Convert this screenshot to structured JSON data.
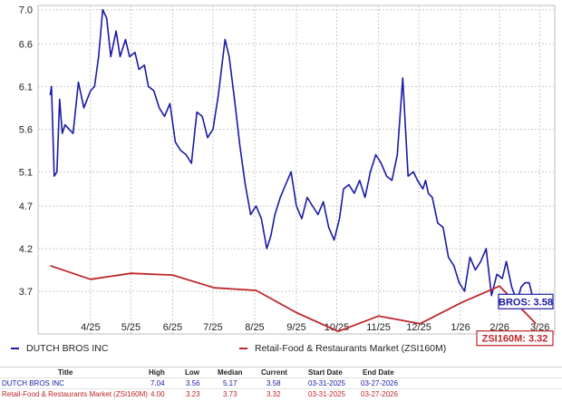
{
  "chart_data": {
    "type": "line",
    "title": "",
    "xlabel": "",
    "ylabel": "",
    "ylim": [
      3.2,
      7.05
    ],
    "y_ticks": [
      3.7,
      4.2,
      4.7,
      5.1,
      5.6,
      6.1,
      6.6,
      7.0
    ],
    "y_tick_labels": [
      "3.7",
      "4.2",
      "4.7",
      "5.1",
      "5.6",
      "6.1",
      "6.6",
      "7.0"
    ],
    "x_ticks": [
      "2025-04-30",
      "2025-05-30",
      "2025-06-30",
      "2025-07-30",
      "2025-08-30",
      "2025-09-30",
      "2025-10-30",
      "2025-11-30",
      "2025-12-30",
      "2026-01-30",
      "2026-02-28",
      "2026-03-30"
    ],
    "x_tick_labels": [
      "4/25",
      "5/25",
      "6/25",
      "7/25",
      "8/25",
      "9/25",
      "10/25",
      "11/25",
      "12/25",
      "1/26",
      "2/26",
      "3/26"
    ],
    "xlim": [
      "2025-03-22",
      "2026-04-10"
    ],
    "grid": true,
    "legend_placement": "bottom",
    "series": [
      {
        "name": "DUTCH BROS INC",
        "color": "#1a1aa6",
        "label": "BROS: 3.58",
        "x": [
          "2025-03-31",
          "2025-04-01",
          "2025-04-03",
          "2025-04-05",
          "2025-04-07",
          "2025-04-09",
          "2025-04-11",
          "2025-04-14",
          "2025-04-17",
          "2025-04-21",
          "2025-04-25",
          "2025-04-30",
          "2025-05-03",
          "2025-05-06",
          "2025-05-09",
          "2025-05-12",
          "2025-05-15",
          "2025-05-19",
          "2025-05-22",
          "2025-05-26",
          "2025-05-29",
          "2025-06-02",
          "2025-06-05",
          "2025-06-09",
          "2025-06-12",
          "2025-06-16",
          "2025-06-20",
          "2025-06-24",
          "2025-06-28",
          "2025-07-02",
          "2025-07-06",
          "2025-07-10",
          "2025-07-14",
          "2025-07-18",
          "2025-07-22",
          "2025-07-26",
          "2025-07-30",
          "2025-08-03",
          "2025-08-06",
          "2025-08-08",
          "2025-08-11",
          "2025-08-15",
          "2025-08-19",
          "2025-08-23",
          "2025-08-27",
          "2025-08-31",
          "2025-09-04",
          "2025-09-08",
          "2025-09-11",
          "2025-09-14",
          "2025-09-18",
          "2025-09-22",
          "2025-09-26",
          "2025-09-30",
          "2025-10-04",
          "2025-10-08",
          "2025-10-12",
          "2025-10-16",
          "2025-10-20",
          "2025-10-24",
          "2025-10-28",
          "2025-11-01",
          "2025-11-04",
          "2025-11-08",
          "2025-11-12",
          "2025-11-16",
          "2025-11-20",
          "2025-11-24",
          "2025-11-28",
          "2025-12-02",
          "2025-12-06",
          "2025-12-10",
          "2025-12-14",
          "2025-12-18",
          "2025-12-22",
          "2025-12-26",
          "2025-12-29",
          "2026-01-02",
          "2026-01-04",
          "2026-01-06",
          "2026-01-09",
          "2026-01-13",
          "2026-01-17",
          "2026-01-21",
          "2026-01-25",
          "2026-01-29",
          "2026-02-02",
          "2026-02-06",
          "2026-02-10",
          "2026-02-14",
          "2026-02-18",
          "2026-02-22",
          "2026-02-26",
          "2026-03-02",
          "2026-03-05",
          "2026-03-09",
          "2026-03-13",
          "2026-03-16",
          "2026-03-19",
          "2026-03-22",
          "2026-03-25",
          "2026-03-27"
        ],
        "values": [
          6.0,
          6.1,
          5.05,
          5.1,
          5.95,
          5.55,
          5.65,
          5.6,
          5.55,
          6.15,
          5.85,
          6.05,
          6.1,
          6.45,
          7.0,
          6.9,
          6.45,
          6.75,
          6.45,
          6.65,
          6.45,
          6.5,
          6.3,
          6.35,
          6.1,
          6.05,
          5.85,
          5.75,
          5.9,
          5.45,
          5.35,
          5.3,
          5.2,
          5.8,
          5.75,
          5.5,
          5.6,
          6.0,
          6.4,
          6.65,
          6.45,
          5.95,
          5.4,
          4.95,
          4.6,
          4.7,
          4.55,
          4.2,
          4.35,
          4.6,
          4.8,
          4.95,
          5.1,
          4.7,
          4.55,
          4.8,
          4.7,
          4.6,
          4.75,
          4.45,
          4.3,
          4.55,
          4.9,
          4.95,
          4.85,
          5.0,
          4.8,
          5.1,
          5.3,
          5.2,
          5.05,
          5.0,
          5.3,
          6.2,
          5.05,
          5.1,
          5.0,
          4.9,
          5.0,
          4.85,
          4.8,
          4.5,
          4.45,
          4.1,
          4.0,
          3.8,
          3.7,
          4.1,
          3.95,
          4.05,
          4.2,
          3.65,
          3.9,
          3.85,
          4.05,
          3.75,
          3.58,
          3.75,
          3.8,
          3.8,
          3.6,
          3.58
        ]
      },
      {
        "name": "Retail-Food & Restaurants Market (ZSI160M)",
        "color": "#c0262a",
        "label": "ZSI160M: 3.32",
        "x": [
          "2025-03-31",
          "2025-04-30",
          "2025-05-30",
          "2025-06-30",
          "2025-07-31",
          "2025-08-31",
          "2025-09-30",
          "2025-10-31",
          "2025-11-30",
          "2025-12-31",
          "2026-01-31",
          "2026-02-28",
          "2026-03-27"
        ],
        "values": [
          4.0,
          3.84,
          3.91,
          3.89,
          3.74,
          3.71,
          3.45,
          3.23,
          3.41,
          3.32,
          3.57,
          3.76,
          3.32
        ]
      }
    ]
  },
  "legend": {
    "items": [
      {
        "label": "DUTCH BROS INC",
        "color": "#1a1aa6"
      },
      {
        "label": "Retail-Food & Restaurants Market (ZSI160M)",
        "color": "#c0262a"
      }
    ]
  },
  "stats_table": {
    "headers": {
      "title": "Title",
      "high": "High",
      "low": "Low",
      "median": "Median",
      "current": "Current",
      "start": "Start Date",
      "end": "End Date"
    },
    "rows": [
      {
        "title": "DUTCH BROS INC",
        "high": "7.04",
        "low": "3.56",
        "median": "5.17",
        "current": "3.58",
        "start": "03-31-2025",
        "end": "03-27-2026"
      },
      {
        "title": "Retail-Food & Restaurants Market (ZSI160M)",
        "high": "4.00",
        "low": "3.23",
        "median": "3.73",
        "current": "3.32",
        "start": "03-31-2025",
        "end": "03-27-2026"
      }
    ]
  }
}
